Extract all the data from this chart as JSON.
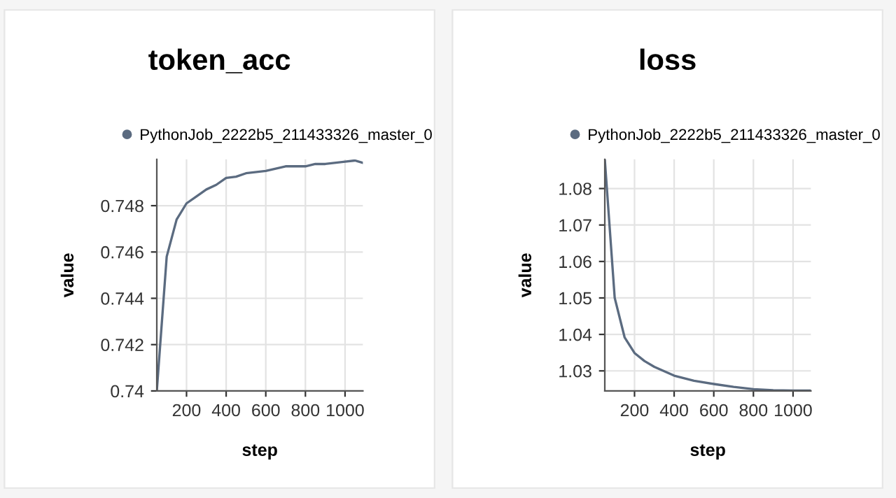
{
  "chart_data": [
    {
      "type": "line",
      "title": "token_acc",
      "xlabel": "step",
      "ylabel": "value",
      "x": [
        50,
        100,
        150,
        200,
        250,
        300,
        350,
        400,
        450,
        500,
        600,
        700,
        750,
        800,
        850,
        900,
        1000,
        1050,
        1090
      ],
      "series": [
        {
          "name": "PythonJob_2222b5_211433326_master_0",
          "color": "#5b6b80",
          "values": [
            0.74,
            0.7458,
            0.7474,
            0.7481,
            0.7484,
            0.7487,
            0.7489,
            0.7492,
            0.74925,
            0.7494,
            0.7495,
            0.7497,
            0.7497,
            0.7497,
            0.7498,
            0.7498,
            0.7499,
            0.74995,
            0.74985
          ]
        }
      ],
      "xlim": [
        50,
        1090
      ],
      "xticks": [
        200,
        400,
        600,
        800,
        1000
      ],
      "ylim": [
        0.74,
        0.75
      ],
      "yticks": [
        {
          "value": 0.74,
          "label": "0.74"
        },
        0.742,
        0.744,
        0.746,
        0.748
      ],
      "grid": true,
      "legend": "top"
    },
    {
      "type": "line",
      "title": "loss",
      "xlabel": "step",
      "ylabel": "value",
      "x": [
        50,
        100,
        150,
        200,
        250,
        300,
        400,
        500,
        600,
        700,
        800,
        900,
        1000,
        1090
      ],
      "series": [
        {
          "name": "PythonJob_2222b5_211433326_master_0",
          "color": "#5b6b80",
          "values": [
            1.088,
            1.05,
            1.0392,
            1.0349,
            1.0327,
            1.0311,
            1.0287,
            1.0273,
            1.0264,
            1.0256,
            1.025,
            1.0247,
            1.0246,
            1.0246
          ]
        }
      ],
      "xlim": [
        50,
        1090
      ],
      "xticks": [
        200,
        400,
        600,
        800,
        1000
      ],
      "ylim": [
        1.0245,
        1.088
      ],
      "yticks": [
        1.03,
        1.04,
        1.05,
        1.06,
        1.07,
        1.08
      ],
      "grid": true,
      "legend": "top"
    }
  ]
}
